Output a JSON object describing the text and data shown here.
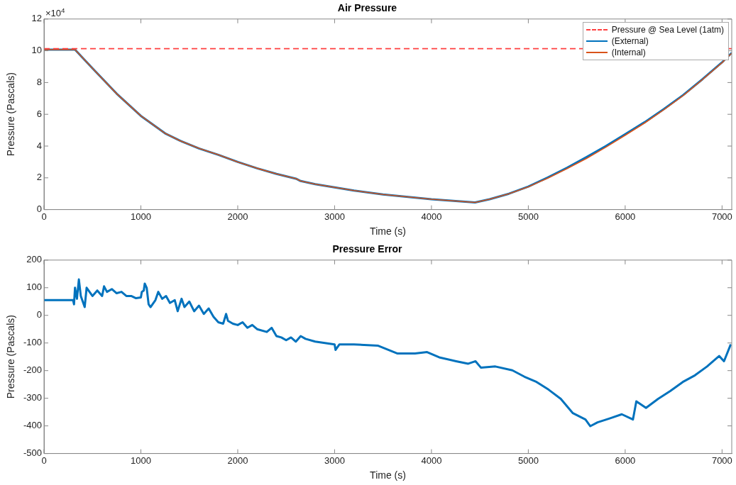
{
  "chart_data": [
    {
      "type": "line",
      "title": "Air Pressure",
      "xlabel": "Time (s)",
      "ylabel": "Pressure (Pascals)",
      "annotations": [
        "×10$^{4}$"
      ],
      "xlim": [
        0,
        7100
      ],
      "xticks": [
        0,
        1000,
        2000,
        3000,
        4000,
        5000,
        6000,
        7000
      ],
      "ylim": [
        0,
        12
      ],
      "yticks": [
        0,
        2,
        4,
        6,
        8,
        10,
        12
      ],
      "legend": "top right",
      "grid": false,
      "line_style": "solid",
      "marker": "none",
      "ref_lines": [
        {
          "axis": "y",
          "value": 10.13,
          "label": "Pressure @ Sea Level (1atm)",
          "color": "#ff4040",
          "line_style": "dashed"
        }
      ],
      "series": [
        {
          "name": "(External)",
          "color": "#0072bd",
          "x": [
            0,
            320,
            500,
            750,
            1000,
            1250,
            1400,
            1600,
            1800,
            2000,
            2200,
            2400,
            2600,
            2650,
            2800,
            3000,
            3200,
            3500,
            4000,
            4450,
            4600,
            4800,
            5000,
            5200,
            5400,
            5600,
            5800,
            6000,
            6200,
            6400,
            6600,
            6800,
            7000,
            7100
          ],
          "values": [
            10.07,
            10.07,
            8.9,
            7.3,
            5.9,
            4.8,
            4.35,
            3.85,
            3.45,
            3.0,
            2.6,
            2.25,
            1.95,
            1.8,
            1.6,
            1.4,
            1.2,
            0.95,
            0.65,
            0.45,
            0.65,
            1.0,
            1.45,
            2.02,
            2.63,
            3.3,
            4.0,
            4.75,
            5.5,
            6.33,
            7.22,
            8.22,
            9.27,
            9.87
          ]
        },
        {
          "name": "(Internal)",
          "color": "#d95319",
          "x": [
            0,
            320,
            500,
            750,
            1000,
            1250,
            1400,
            1600,
            1800,
            2000,
            2200,
            2400,
            2600,
            2650,
            2800,
            3000,
            3200,
            3500,
            4000,
            4450,
            4600,
            4800,
            5000,
            5200,
            5400,
            5600,
            5800,
            6000,
            6200,
            6400,
            6600,
            6800,
            7000,
            7100
          ],
          "values": [
            10.07,
            10.07,
            8.9,
            7.3,
            5.9,
            4.8,
            4.35,
            3.85,
            3.45,
            3.0,
            2.6,
            2.25,
            1.95,
            1.8,
            1.6,
            1.4,
            1.2,
            0.95,
            0.65,
            0.45,
            0.65,
            1.0,
            1.43,
            1.98,
            2.58,
            3.22,
            3.93,
            4.68,
            5.45,
            6.29,
            7.19,
            8.2,
            9.25,
            9.85
          ]
        }
      ]
    },
    {
      "type": "line",
      "title": "Pressure Error",
      "xlabel": "Time (s)",
      "ylabel": "Pressure (Pascals)",
      "xlim": [
        0,
        7100
      ],
      "xticks": [
        0,
        1000,
        2000,
        3000,
        4000,
        5000,
        6000,
        7000
      ],
      "ylim": [
        -500,
        200
      ],
      "yticks": [
        -500,
        -400,
        -300,
        -200,
        -100,
        0,
        100,
        200
      ],
      "legend": false,
      "grid": false,
      "line_style": "solid",
      "marker": "none",
      "series": [
        {
          "color": "#0072bd",
          "x": [
            0,
            300,
            310,
            320,
            340,
            360,
            380,
            420,
            440,
            500,
            550,
            600,
            620,
            650,
            700,
            750,
            800,
            850,
            900,
            950,
            1000,
            1010,
            1030,
            1040,
            1060,
            1080,
            1100,
            1150,
            1180,
            1220,
            1260,
            1300,
            1350,
            1380,
            1420,
            1450,
            1500,
            1550,
            1600,
            1650,
            1700,
            1750,
            1800,
            1850,
            1880,
            1900,
            1950,
            2000,
            2050,
            2100,
            2150,
            2200,
            2300,
            2350,
            2400,
            2450,
            2500,
            2550,
            2600,
            2650,
            2700,
            2800,
            2900,
            3000,
            3010,
            3050,
            3200,
            3450,
            3650,
            3830,
            3955,
            4080,
            4255,
            4380,
            4455,
            4510,
            4660,
            4835,
            4960,
            5085,
            5210,
            5335,
            5460,
            5590,
            5640,
            5715,
            5840,
            5965,
            6080,
            6115,
            6215,
            6340,
            6465,
            6595,
            6720,
            6845,
            6970,
            7020,
            7090
          ],
          "values": [
            55,
            55,
            40,
            100,
            60,
            130,
            70,
            30,
            100,
            70,
            90,
            70,
            105,
            85,
            95,
            80,
            85,
            70,
            70,
            62,
            65,
            85,
            90,
            115,
            100,
            40,
            30,
            55,
            85,
            60,
            70,
            45,
            55,
            15,
            60,
            30,
            50,
            15,
            35,
            5,
            25,
            -5,
            -25,
            -30,
            5,
            -20,
            -30,
            -35,
            -25,
            -45,
            -35,
            -50,
            -60,
            -45,
            -75,
            -80,
            -90,
            -80,
            -95,
            -75,
            -85,
            -95,
            -100,
            -105,
            -125,
            -105,
            -105,
            -110,
            -138,
            -138,
            -133,
            -152,
            -166,
            -175,
            -166,
            -189,
            -185,
            -199,
            -222,
            -241,
            -269,
            -302,
            -354,
            -377,
            -401,
            -387,
            -373,
            -358,
            -377,
            -311,
            -335,
            -302,
            -274,
            -241,
            -217,
            -185,
            -147,
            -166,
            -105
          ]
        }
      ]
    }
  ]
}
